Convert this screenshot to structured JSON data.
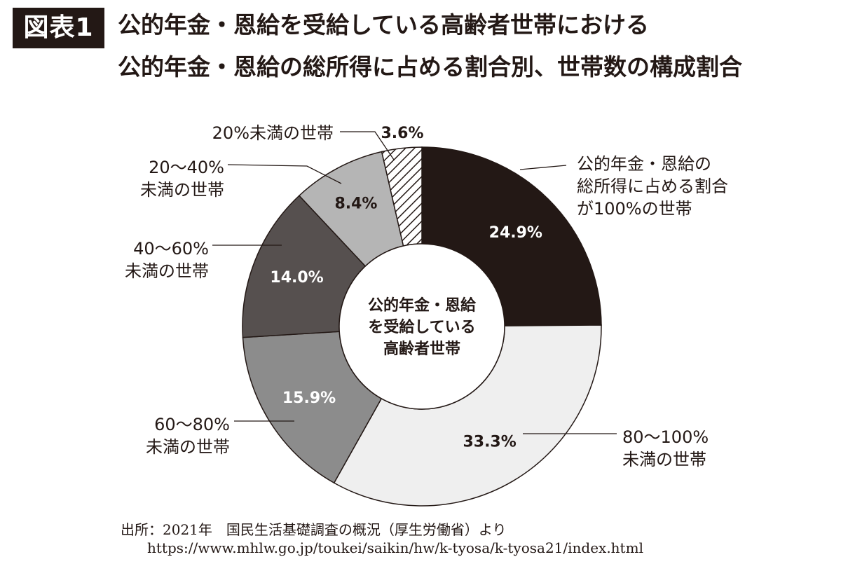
{
  "figure_label": "図表1",
  "title_lines": [
    "公的年金・恩給を受給している高齢者世帯における",
    "公的年金・恩給の総所得に占める割合別、世帯数の構成割合"
  ],
  "center_label_lines": [
    "公的年金・恩給",
    "を受給している",
    "高齢者世帯"
  ],
  "source_lines": [
    "出所：2021年　国民生活基礎調査の概況（厚生労働省）より",
    "https://www.mhlw.go.jp/toukei/saikin/hw/k-tyosa/k-tyosa21/index.html"
  ],
  "colors": {
    "text": "#231815",
    "slice_100": "#231815",
    "slice_80_100": "#efefef",
    "slice_60_80": "#8c8c8c",
    "slice_40_60": "#56504f",
    "slice_20_40": "#b5b5b5",
    "slice_under20": "hatched"
  },
  "chart_data": {
    "type": "pie",
    "style": "donut",
    "title": "公的年金・恩給の総所得に占める割合別、世帯数の構成割合",
    "unit": "%",
    "slices": [
      {
        "label_lines": [
          "公的年金・恩給の",
          "総所得に占める割合",
          "が100%の世帯"
        ],
        "value": 24.9,
        "value_label": "24.9%",
        "color": "#231815",
        "value_text_color": "#ffffff"
      },
      {
        "label_lines": [
          "80〜100%",
          "未満の世帯"
        ],
        "value": 33.3,
        "value_label": "33.3%",
        "color": "#efefef",
        "value_text_color": "#231815"
      },
      {
        "label_lines": [
          "60〜80%",
          "未満の世帯"
        ],
        "value": 15.9,
        "value_label": "15.9%",
        "color": "#8c8c8c",
        "value_text_color": "#ffffff"
      },
      {
        "label_lines": [
          "40〜60%",
          "未満の世帯"
        ],
        "value": 14.0,
        "value_label": "14.0%",
        "color": "#56504f",
        "value_text_color": "#ffffff"
      },
      {
        "label_lines": [
          "20〜40%",
          "未満の世帯"
        ],
        "value": 8.4,
        "value_label": "8.4%",
        "color": "#b5b5b5",
        "value_text_color": "#231815"
      },
      {
        "label_lines": [
          "20%未満の世帯"
        ],
        "value": 3.6,
        "value_label": "3.6%",
        "color": "hatched",
        "value_text_color": "#231815"
      }
    ]
  }
}
